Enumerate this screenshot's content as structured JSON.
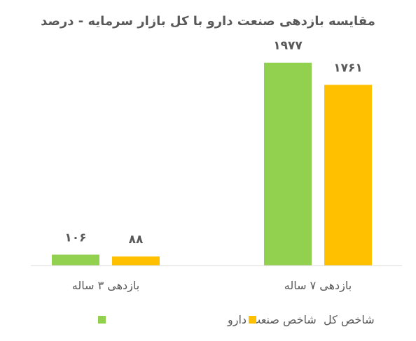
{
  "chart_data": {
    "type": "bar",
    "title": "مقایسه بازدهی صنعت دارو با کل بازار سرمایه - درصد",
    "categories": [
      "بازدهی ۳ ساله",
      "بازدهی ۷ ساله"
    ],
    "series": [
      {
        "name": "شاخص صنعت دارو",
        "color": "#92D050",
        "values": [
          106,
          1977
        ],
        "labels": [
          "۱۰۶",
          "۱۹۷۷"
        ]
      },
      {
        "name": "شاخص کل",
        "color": "#FFC000",
        "values": [
          88,
          1761
        ],
        "labels": [
          "۸۸",
          "۱۷۶۱"
        ]
      }
    ],
    "ylim": [
      0,
      2200
    ],
    "grid": false,
    "axis_color": "#D9D9D9",
    "legend_position": "bottom"
  }
}
